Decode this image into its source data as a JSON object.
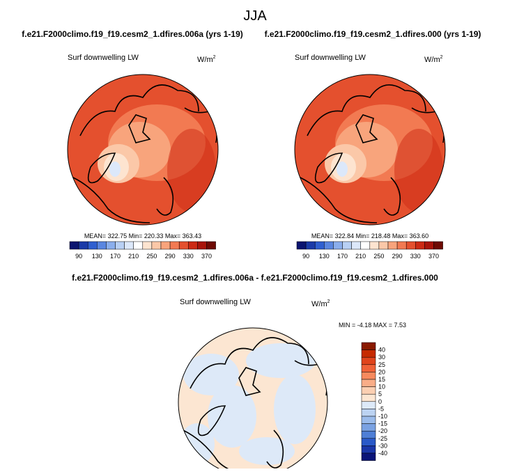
{
  "title": "JJA",
  "panels": [
    {
      "title": "f.e21.F2000climo.f19_f19.cesm2_1.dfires.006a (yrs 1-19)",
      "variable": "Surf downwelling LW",
      "units": "W/m",
      "units_sup": "2",
      "stats": "MEAN= 322.75  Min= 220.33  Max= 363.43",
      "colorbar_labels": [
        "90",
        "130",
        "170",
        "210",
        "250",
        "290",
        "330",
        "370"
      ]
    },
    {
      "title": "f.e21.F2000climo.f19_f19.cesm2_1.dfires.000 (yrs 1-19)",
      "variable": "Surf downwelling LW",
      "units": "W/m",
      "units_sup": "2",
      "stats": "MEAN= 322.84  Min= 218.48  Max= 363.60",
      "colorbar_labels": [
        "90",
        "130",
        "170",
        "210",
        "250",
        "290",
        "330",
        "370"
      ]
    },
    {
      "title": "f.e21.F2000climo.f19_f19.cesm2_1.dfires.006a - f.e21.F2000climo.f19_f19.cesm2_1.dfires.000",
      "variable": "Surf downwelling LW",
      "units": "W/m",
      "units_sup": "2",
      "stats": "MIN = -4.18 MAX =  7.53",
      "colorbar_labels": [
        "40",
        "30",
        "25",
        "20",
        "15",
        "10",
        "5",
        "0",
        "-5",
        "-10",
        "-15",
        "-20",
        "-25",
        "-30",
        "-40"
      ]
    }
  ]
}
